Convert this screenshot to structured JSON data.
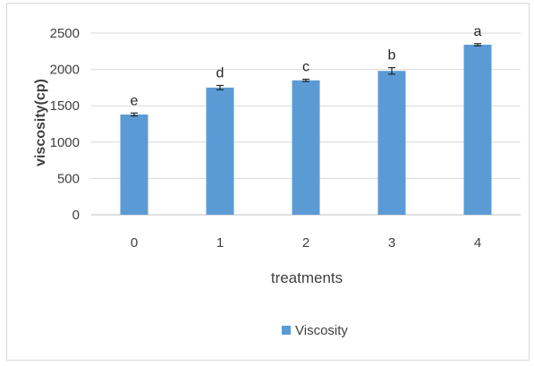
{
  "chart_data": {
    "type": "bar",
    "categories": [
      "0",
      "1",
      "2",
      "3",
      "4"
    ],
    "series": [
      {
        "name": "Viscosity",
        "values": [
          1380,
          1750,
          1850,
          1980,
          2340
        ],
        "errors": [
          20,
          30,
          15,
          45,
          15
        ],
        "labels": [
          "e",
          "d",
          "c",
          "b",
          "a"
        ],
        "color": "#5b9bd5"
      }
    ],
    "xlabel": "treatments",
    "ylabel": "viscosity(cp)",
    "ylim": [
      0,
      2500
    ],
    "yticks": [
      0,
      500,
      1000,
      1500,
      2000,
      2500
    ],
    "grid": true,
    "legend": "bottom"
  }
}
